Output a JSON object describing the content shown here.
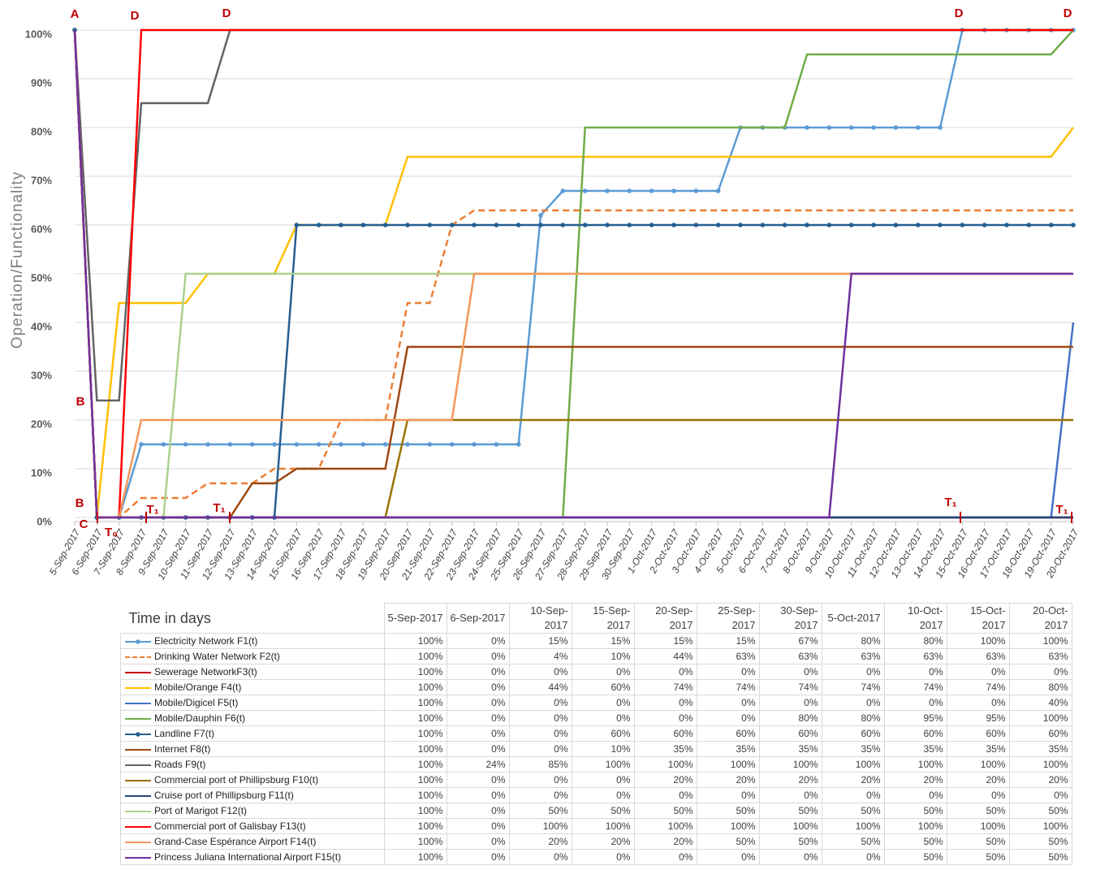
{
  "chart_data": {
    "type": "line",
    "y_label": "Operation/Functionality",
    "x_label": "Time in days",
    "categories": [
      "5-Sep-2017",
      "6-Sep-2017",
      "7-Sep-2017",
      "8-Sep-2017",
      "9-Sep-2017",
      "10-Sep-2017",
      "11-Sep-2017",
      "12-Sep-2017",
      "13-Sep-2017",
      "14-Sep-2017",
      "15-Sep-2017",
      "16-Sep-2017",
      "17-Sep-2017",
      "18-Sep-2017",
      "19-Sep-2017",
      "20-Sep-2017",
      "21-Sep-2017",
      "22-Sep-2017",
      "23-Sep-2017",
      "24-Sep-2017",
      "25-Sep-2017",
      "26-Sep-2017",
      "27-Sep-2017",
      "28-Sep-2017",
      "29-Sep-2017",
      "30-Sep-2017",
      "1-Oct-2017",
      "2-Oct-2017",
      "3-Oct-2017",
      "4-Oct-2017",
      "5-Oct-2017",
      "6-Oct-2017",
      "7-Oct-2017",
      "8-Oct-2017",
      "9-Oct-2017",
      "10-Oct-2017",
      "11-Oct-2017",
      "12-Oct-2017",
      "13-Oct-2017",
      "14-Oct-2017",
      "15-Oct-2017",
      "16-Oct-2017",
      "17-Oct-2017",
      "18-Oct-2017",
      "19-Oct-2017",
      "20-Oct-2017"
    ],
    "ylim": [
      0,
      100
    ],
    "yticks": [
      {
        "value": 0,
        "label": "0%"
      },
      {
        "value": 10,
        "label": "10%"
      },
      {
        "value": 20,
        "label": "20%"
      },
      {
        "value": 30,
        "label": "30%"
      },
      {
        "value": 40,
        "label": "40%"
      },
      {
        "value": 50,
        "label": "50%"
      },
      {
        "value": 60,
        "label": "60%"
      },
      {
        "value": 70,
        "label": "70%"
      },
      {
        "value": 80,
        "label": "80%"
      },
      {
        "value": 90,
        "label": "90%"
      },
      {
        "value": 100,
        "label": "100%"
      }
    ],
    "grid": true,
    "annotations": [
      "A",
      "D",
      "D",
      "D",
      "D",
      "B",
      "B",
      "C",
      "T₀",
      "T₁",
      "T₁",
      "T₁",
      "T₁"
    ],
    "series": [
      {
        "name": "Electricity Network F1(t)",
        "color": "#5b9bd5",
        "marker": "circle",
        "values": [
          100,
          0,
          0,
          15,
          15,
          15,
          15,
          15,
          15,
          15,
          15,
          15,
          15,
          15,
          15,
          15,
          15,
          15,
          15,
          15,
          15,
          62,
          67,
          67,
          67,
          67,
          67,
          67,
          67,
          67,
          80,
          80,
          80,
          80,
          80,
          80,
          80,
          80,
          80,
          80,
          100,
          100,
          100,
          100,
          100,
          100
        ]
      },
      {
        "name": "Drinking Water Network F2(t)",
        "color": "#ed7d31",
        "dash": true,
        "values": [
          100,
          0,
          0,
          4,
          4,
          4,
          7,
          7,
          7,
          10,
          10,
          10,
          20,
          20,
          20,
          44,
          44,
          60,
          63,
          63,
          63,
          63,
          63,
          63,
          63,
          63,
          63,
          63,
          63,
          63,
          63,
          63,
          63,
          63,
          63,
          63,
          63,
          63,
          63,
          63,
          63,
          63,
          63,
          63,
          63,
          63
        ]
      },
      {
        "name": "Sewerage NetworkF3(t)",
        "color": "#c00000",
        "values": [
          100,
          0,
          0,
          0,
          0,
          0,
          0,
          0,
          0,
          0,
          0,
          0,
          0,
          0,
          0,
          0,
          0,
          0,
          0,
          0,
          0,
          0,
          0,
          0,
          0,
          0,
          0,
          0,
          0,
          0,
          0,
          0,
          0,
          0,
          0,
          0,
          0,
          0,
          0,
          0,
          0,
          0,
          0,
          0,
          0,
          0
        ]
      },
      {
        "name": "Mobile/Orange F4(t)",
        "color": "#ffc000",
        "values": [
          100,
          0,
          44,
          44,
          44,
          44,
          50,
          50,
          50,
          50,
          60,
          60,
          60,
          60,
          60,
          74,
          74,
          74,
          74,
          74,
          74,
          74,
          74,
          74,
          74,
          74,
          74,
          74,
          74,
          74,
          74,
          74,
          74,
          74,
          74,
          74,
          74,
          74,
          74,
          74,
          74,
          74,
          74,
          74,
          74,
          80
        ]
      },
      {
        "name": "Mobile/Digicel F5(t)",
        "color": "#4472c4",
        "values": [
          100,
          0,
          0,
          0,
          0,
          0,
          0,
          0,
          0,
          0,
          0,
          0,
          0,
          0,
          0,
          0,
          0,
          0,
          0,
          0,
          0,
          0,
          0,
          0,
          0,
          0,
          0,
          0,
          0,
          0,
          0,
          0,
          0,
          0,
          0,
          0,
          0,
          0,
          0,
          0,
          0,
          0,
          0,
          0,
          0,
          40
        ]
      },
      {
        "name": "Mobile/Dauphin F6(t)",
        "color": "#70ad47",
        "values": [
          100,
          0,
          0,
          0,
          0,
          0,
          0,
          0,
          0,
          0,
          0,
          0,
          0,
          0,
          0,
          0,
          0,
          0,
          0,
          0,
          0,
          0,
          0,
          80,
          80,
          80,
          80,
          80,
          80,
          80,
          80,
          80,
          80,
          95,
          95,
          95,
          95,
          95,
          95,
          95,
          95,
          95,
          95,
          95,
          95,
          100
        ]
      },
      {
        "name": "Landline F7(t)",
        "color": "#255e91",
        "marker": "circle",
        "values": [
          100,
          0,
          0,
          0,
          0,
          0,
          0,
          0,
          0,
          0,
          60,
          60,
          60,
          60,
          60,
          60,
          60,
          60,
          60,
          60,
          60,
          60,
          60,
          60,
          60,
          60,
          60,
          60,
          60,
          60,
          60,
          60,
          60,
          60,
          60,
          60,
          60,
          60,
          60,
          60,
          60,
          60,
          60,
          60,
          60,
          60
        ]
      },
      {
        "name": "Internet F8(t)",
        "color": "#9e480e",
        "values": [
          100,
          0,
          0,
          0,
          0,
          0,
          0,
          0,
          7,
          7,
          10,
          10,
          10,
          10,
          10,
          35,
          35,
          35,
          35,
          35,
          35,
          35,
          35,
          35,
          35,
          35,
          35,
          35,
          35,
          35,
          35,
          35,
          35,
          35,
          35,
          35,
          35,
          35,
          35,
          35,
          35,
          35,
          35,
          35,
          35,
          35
        ]
      },
      {
        "name": "Roads F9(t)",
        "color": "#636363",
        "values": [
          100,
          24,
          24,
          85,
          85,
          85,
          85,
          100,
          100,
          100,
          100,
          100,
          100,
          100,
          100,
          100,
          100,
          100,
          100,
          100,
          100,
          100,
          100,
          100,
          100,
          100,
          100,
          100,
          100,
          100,
          100,
          100,
          100,
          100,
          100,
          100,
          100,
          100,
          100,
          100,
          100,
          100,
          100,
          100,
          100,
          100
        ]
      },
      {
        "name": "Commercial port of Phillipsburg F10(t)",
        "color": "#997300",
        "values": [
          100,
          0,
          0,
          0,
          0,
          0,
          0,
          0,
          0,
          0,
          0,
          0,
          0,
          0,
          0,
          20,
          20,
          20,
          20,
          20,
          20,
          20,
          20,
          20,
          20,
          20,
          20,
          20,
          20,
          20,
          20,
          20,
          20,
          20,
          20,
          20,
          20,
          20,
          20,
          20,
          20,
          20,
          20,
          20,
          20,
          20
        ]
      },
      {
        "name": "Cruise port of Phillipsburg F11(t)",
        "color": "#264478",
        "values": [
          100,
          0,
          0,
          0,
          0,
          0,
          0,
          0,
          0,
          0,
          0,
          0,
          0,
          0,
          0,
          0,
          0,
          0,
          0,
          0,
          0,
          0,
          0,
          0,
          0,
          0,
          0,
          0,
          0,
          0,
          0,
          0,
          0,
          0,
          0,
          0,
          0,
          0,
          0,
          0,
          0,
          0,
          0,
          0,
          0,
          0
        ]
      },
      {
        "name": "Port of Marigot F12(t)",
        "color": "#a9d18e",
        "values": [
          100,
          0,
          0,
          0,
          0,
          50,
          50,
          50,
          50,
          50,
          50,
          50,
          50,
          50,
          50,
          50,
          50,
          50,
          50,
          50,
          50,
          50,
          50,
          50,
          50,
          50,
          50,
          50,
          50,
          50,
          50,
          50,
          50,
          50,
          50,
          50,
          50,
          50,
          50,
          50,
          50,
          50,
          50,
          50,
          50,
          50
        ]
      },
      {
        "name": "Commercial port of Galisbay F13(t)",
        "color": "#ff0000",
        "values": [
          100,
          0,
          0,
          100,
          100,
          100,
          100,
          100,
          100,
          100,
          100,
          100,
          100,
          100,
          100,
          100,
          100,
          100,
          100,
          100,
          100,
          100,
          100,
          100,
          100,
          100,
          100,
          100,
          100,
          100,
          100,
          100,
          100,
          100,
          100,
          100,
          100,
          100,
          100,
          100,
          100,
          100,
          100,
          100,
          100,
          100
        ]
      },
      {
        "name": "Grand-Case Espérance Airport F14(t)",
        "color": "#f1975a",
        "values": [
          100,
          0,
          0,
          20,
          20,
          20,
          20,
          20,
          20,
          20,
          20,
          20,
          20,
          20,
          20,
          20,
          20,
          20,
          50,
          50,
          50,
          50,
          50,
          50,
          50,
          50,
          50,
          50,
          50,
          50,
          50,
          50,
          50,
          50,
          50,
          50,
          50,
          50,
          50,
          50,
          50,
          50,
          50,
          50,
          50,
          50
        ]
      },
      {
        "name": "Princess Juliana International Airport F15(t)",
        "color": "#7030a0",
        "values": [
          100,
          0,
          0,
          0,
          0,
          0,
          0,
          0,
          0,
          0,
          0,
          0,
          0,
          0,
          0,
          0,
          0,
          0,
          0,
          0,
          0,
          0,
          0,
          0,
          0,
          0,
          0,
          0,
          0,
          0,
          0,
          0,
          0,
          0,
          0,
          50,
          50,
          50,
          50,
          50,
          50,
          50,
          50,
          50,
          50,
          50
        ]
      }
    ]
  },
  "table": {
    "columns": [
      "5-Sep-2017",
      "6-Sep-2017",
      "10-Sep-2017",
      "15-Sep-2017",
      "20-Sep-2017",
      "25-Sep-2017",
      "30-Sep-2017",
      "5-Oct-2017",
      "10-Oct-2017",
      "15-Oct-2017",
      "20-Oct-2017"
    ],
    "rows": [
      [
        "100%",
        "0%",
        "15%",
        "15%",
        "15%",
        "15%",
        "67%",
        "80%",
        "80%",
        "100%",
        "100%"
      ],
      [
        "100%",
        "0%",
        "4%",
        "10%",
        "44%",
        "63%",
        "63%",
        "63%",
        "63%",
        "63%",
        "63%"
      ],
      [
        "100%",
        "0%",
        "0%",
        "0%",
        "0%",
        "0%",
        "0%",
        "0%",
        "0%",
        "0%",
        "0%"
      ],
      [
        "100%",
        "0%",
        "44%",
        "60%",
        "74%",
        "74%",
        "74%",
        "74%",
        "74%",
        "74%",
        "80%"
      ],
      [
        "100%",
        "0%",
        "0%",
        "0%",
        "0%",
        "0%",
        "0%",
        "0%",
        "0%",
        "0%",
        "40%"
      ],
      [
        "100%",
        "0%",
        "0%",
        "0%",
        "0%",
        "0%",
        "80%",
        "80%",
        "95%",
        "95%",
        "100%"
      ],
      [
        "100%",
        "0%",
        "0%",
        "60%",
        "60%",
        "60%",
        "60%",
        "60%",
        "60%",
        "60%",
        "60%"
      ],
      [
        "100%",
        "0%",
        "0%",
        "10%",
        "35%",
        "35%",
        "35%",
        "35%",
        "35%",
        "35%",
        "35%"
      ],
      [
        "100%",
        "24%",
        "85%",
        "100%",
        "100%",
        "100%",
        "100%",
        "100%",
        "100%",
        "100%",
        "100%"
      ],
      [
        "100%",
        "0%",
        "0%",
        "0%",
        "20%",
        "20%",
        "20%",
        "20%",
        "20%",
        "20%",
        "20%"
      ],
      [
        "100%",
        "0%",
        "0%",
        "0%",
        "0%",
        "0%",
        "0%",
        "0%",
        "0%",
        "0%",
        "0%"
      ],
      [
        "100%",
        "0%",
        "50%",
        "50%",
        "50%",
        "50%",
        "50%",
        "50%",
        "50%",
        "50%",
        "50%"
      ],
      [
        "100%",
        "0%",
        "100%",
        "100%",
        "100%",
        "100%",
        "100%",
        "100%",
        "100%",
        "100%",
        "100%"
      ],
      [
        "100%",
        "0%",
        "20%",
        "20%",
        "20%",
        "50%",
        "50%",
        "50%",
        "50%",
        "50%",
        "50%"
      ],
      [
        "100%",
        "0%",
        "0%",
        "0%",
        "0%",
        "0%",
        "0%",
        "0%",
        "50%",
        "50%",
        "50%"
      ]
    ]
  }
}
